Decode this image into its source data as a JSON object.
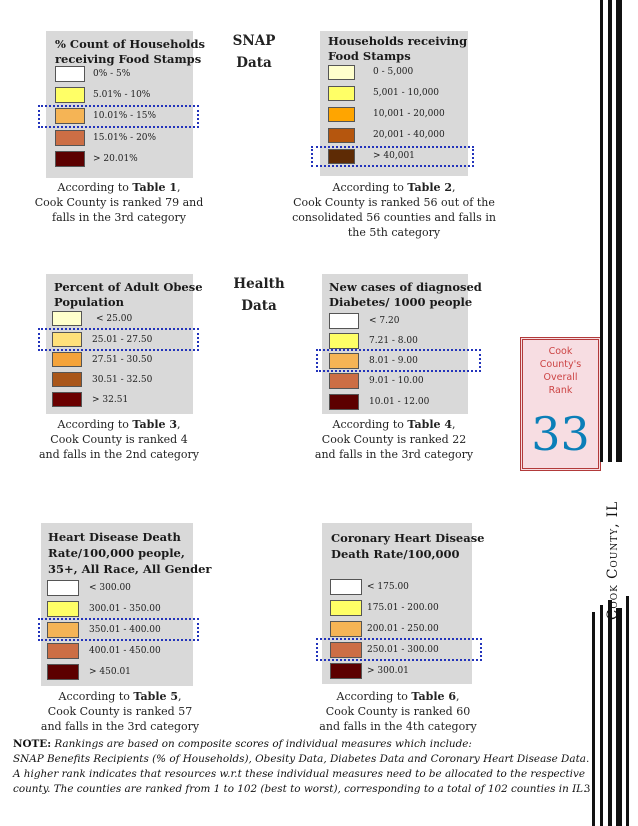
{
  "sections": {
    "snap": {
      "line1": "SNAP",
      "line2": "Data"
    },
    "health": {
      "line1": "Health",
      "line2": "Data"
    }
  },
  "panels": [
    {
      "title_lines": [
        "% Count of Households",
        "receiving Food Stamps"
      ],
      "legend": [
        {
          "label": "0% - 5%",
          "color": "#ffffff"
        },
        {
          "label": "5.01% - 10%",
          "color": "#ffff66"
        },
        {
          "label": "10.01% - 15%",
          "color": "#f5b455"
        },
        {
          "label": "15.01% - 20%",
          "color": "#cc6e45"
        },
        {
          "label": "> 20.01%",
          "color": "#5c0000"
        }
      ],
      "highlight_index": 2,
      "caption": {
        "pre": "According to ",
        "table": "Table 1",
        "post": ",",
        "line2": "Cook County is ranked 79 and",
        "line3": "falls in the 3rd category"
      }
    },
    {
      "title_lines": [
        "Households receiving",
        "Food Stamps"
      ],
      "legend": [
        {
          "label": "0 - 5,000",
          "color": "#ffffcc"
        },
        {
          "label": "5,001 - 10,000",
          "color": "#ffff66"
        },
        {
          "label": "10,001 - 20,000",
          "color": "#ffa500"
        },
        {
          "label": "20,001 - 40,000",
          "color": "#b5560e"
        },
        {
          "label": "> 40,001",
          "color": "#5e2b05"
        }
      ],
      "highlight_index": 4,
      "caption": {
        "pre": "According to ",
        "table": "Table 2",
        "post": ",",
        "line2": "Cook County is ranked 56 out of the",
        "line3": "consolidated 56 counties and falls in",
        "line4": "the 5th category"
      }
    },
    {
      "title_lines": [
        "Percent of Adult Obese",
        "Population"
      ],
      "legend": [
        {
          "label": "< 25.00",
          "color": "#ffffcc"
        },
        {
          "label": "25.01 - 27.50",
          "color": "#ffe17a"
        },
        {
          "label": "27.51 - 30.50",
          "color": "#f4a33a"
        },
        {
          "label": "30.51 - 32.50",
          "color": "#a9561a"
        },
        {
          "label": "> 32.51",
          "color": "#6b0000"
        }
      ],
      "highlight_index": 1,
      "caption": {
        "pre": "According to ",
        "table": "Table 3",
        "post": ",",
        "line2": "Cook County is ranked 4",
        "line3": "and falls in the 2nd category"
      }
    },
    {
      "title_lines": [
        "New cases of diagnosed",
        "Diabetes/ 1000 people"
      ],
      "legend": [
        {
          "label": "< 7.20",
          "color": "#ffffff"
        },
        {
          "label": "7.21 - 8.00",
          "color": "#ffff66"
        },
        {
          "label": "8.01 - 9.00",
          "color": "#f5b455"
        },
        {
          "label": "9.01 - 10.00",
          "color": "#cc6e45"
        },
        {
          "label": "10.01 - 12.00",
          "color": "#5c0000"
        }
      ],
      "highlight_index": 2,
      "caption": {
        "pre": "According to ",
        "table": "Table 4",
        "post": ",",
        "line2": "Cook County is ranked 22",
        "line3": "and falls in the 3rd category"
      }
    },
    {
      "title_lines": [
        "Heart Disease Death",
        "Rate/100,000 people,",
        "35+, All Race, All Gender"
      ],
      "legend": [
        {
          "label": "< 300.00",
          "color": "#ffffff"
        },
        {
          "label": "300.01 - 350.00",
          "color": "#ffff66"
        },
        {
          "label": "350.01 - 400.00",
          "color": "#f5b455"
        },
        {
          "label": "400.01 - 450.00",
          "color": "#cc6e45"
        },
        {
          "label": "> 450.01",
          "color": "#5c0000"
        }
      ],
      "highlight_index": 2,
      "caption": {
        "pre": "According to ",
        "table": "Table 5",
        "post": ",",
        "line2": "Cook County is ranked 57",
        "line3": "and falls in the 3rd category"
      }
    },
    {
      "title_lines": [
        "Coronary Heart Disease",
        "Death Rate/100,000"
      ],
      "legend": [
        {
          "label": "< 175.00",
          "color": "#ffffff"
        },
        {
          "label": "175.01 - 200.00",
          "color": "#ffff66"
        },
        {
          "label": "200.01 - 250.00",
          "color": "#f5b455"
        },
        {
          "label": "250.01 - 300.00",
          "color": "#cc6e45"
        },
        {
          "label": "> 300.01",
          "color": "#5c0000"
        }
      ],
      "highlight_index": 3,
      "caption": {
        "pre": "According to ",
        "table": "Table 6",
        "post": ",",
        "line2": "Cook County is ranked 60",
        "line3": "and falls in the 4th category"
      }
    }
  ],
  "rank_box": {
    "line1": "Cook",
    "line2": "County's",
    "line3": "Overall",
    "line4": "Rank",
    "rank": "33"
  },
  "county_label": "Cook County, IL",
  "note": {
    "label": "NOTE:",
    "line1": " Rankings are based on composite scores of individual measures which include:",
    "line2": "SNAP Benefits Recipients (% of Households), Obesity Data, Diabetes Data and Coronary Heart Disease Data.",
    "line3": "A higher rank indicates that resources w.r.t these individual measures need to be allocated to the respective",
    "line4": "county. The counties are ranked from 1 to 102 (best to worst), corresponding to a total of 102 counties in IL."
  },
  "page_number": "3"
}
